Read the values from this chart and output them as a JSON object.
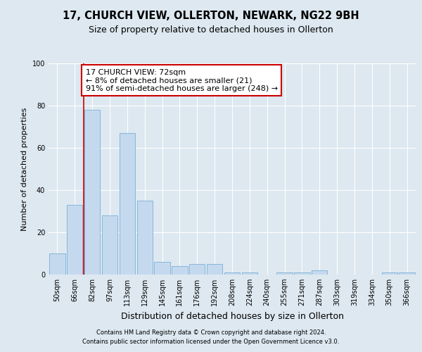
{
  "title": "17, CHURCH VIEW, OLLERTON, NEWARK, NG22 9BH",
  "subtitle": "Size of property relative to detached houses in Ollerton",
  "xlabel": "Distribution of detached houses by size in Ollerton",
  "ylabel": "Number of detached properties",
  "categories": [
    "50sqm",
    "66sqm",
    "82sqm",
    "97sqm",
    "113sqm",
    "129sqm",
    "145sqm",
    "161sqm",
    "176sqm",
    "192sqm",
    "208sqm",
    "224sqm",
    "240sqm",
    "255sqm",
    "271sqm",
    "287sqm",
    "303sqm",
    "319sqm",
    "334sqm",
    "350sqm",
    "366sqm"
  ],
  "values": [
    10,
    33,
    78,
    28,
    67,
    35,
    6,
    4,
    5,
    5,
    1,
    1,
    0,
    1,
    1,
    2,
    0,
    0,
    0,
    1,
    1
  ],
  "bar_color": "#c5d9ee",
  "bar_edge_color": "#7ab0d8",
  "annotation_box_text": "17 CHURCH VIEW: 72sqm\n← 8% of detached houses are smaller (21)\n91% of semi-detached houses are larger (248) →",
  "annotation_box_color": "#ffffff",
  "annotation_box_edge_color": "#cc0000",
  "vertical_line_color": "#cc0000",
  "vline_x": 1.5,
  "ylim": [
    0,
    100
  ],
  "bg_color": "#dde8f0",
  "grid_color": "#ffffff",
  "footer_line1": "Contains HM Land Registry data © Crown copyright and database right 2024.",
  "footer_line2": "Contains public sector information licensed under the Open Government Licence v3.0.",
  "title_fontsize": 10.5,
  "subtitle_fontsize": 9,
  "ylabel_fontsize": 8,
  "xlabel_fontsize": 9,
  "tick_labelsize": 7,
  "ann_fontsize": 8
}
